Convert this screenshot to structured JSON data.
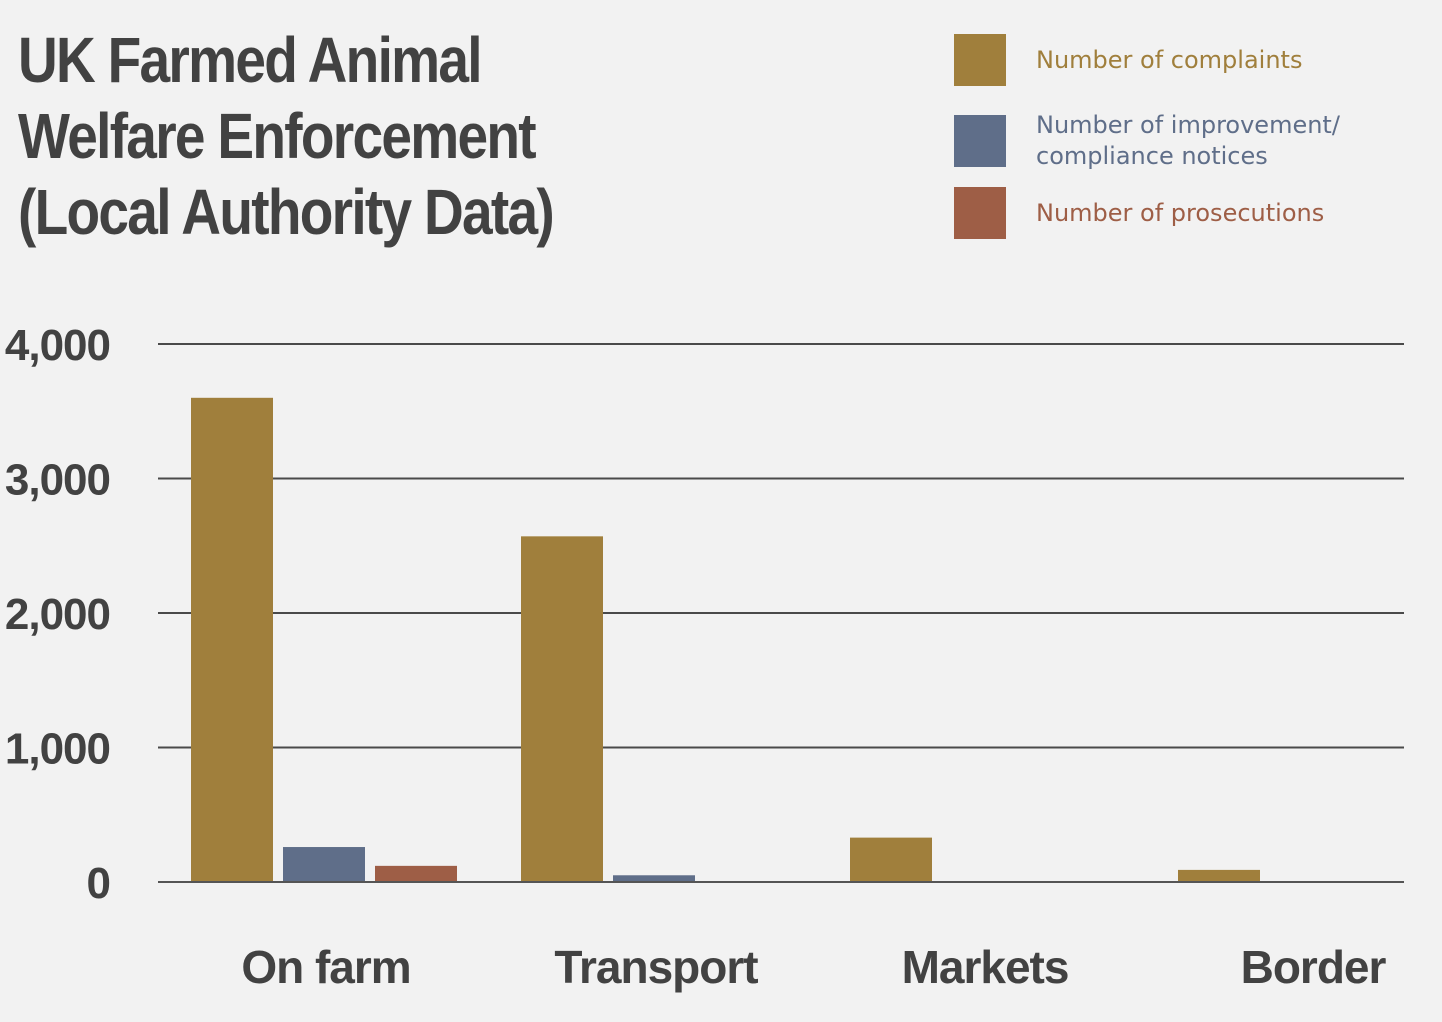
{
  "chart_data": {
    "type": "bar",
    "title": "UK Farmed Animal Welfare Enforcement (Local Authority Data)",
    "title_lines": [
      "UK Farmed Animal",
      "Welfare Enforcement",
      "(Local Authority Data)"
    ],
    "categories": [
      "On farm",
      "Transport",
      "Markets",
      "Border"
    ],
    "series": [
      {
        "name": "Number of complaints",
        "color": "#a07f3c",
        "values": [
          3600,
          2570,
          330,
          90
        ]
      },
      {
        "name": "Number of improvement/ compliance notices",
        "name_lines": [
          "Number of improvement/",
          "compliance notices"
        ],
        "color": "#5f6e89",
        "values": [
          260,
          50,
          0,
          0
        ]
      },
      {
        "name": "Number of prosecutions",
        "color": "#9e5e46",
        "values": [
          120,
          0,
          0,
          0
        ]
      }
    ],
    "ylim": [
      0,
      4000
    ],
    "yticks": [
      0,
      1000,
      2000,
      3000,
      4000
    ],
    "ytick_labels": [
      "0",
      "1,000",
      "2,000",
      "3,000",
      "4,000"
    ],
    "xlabel": "",
    "ylabel": "",
    "grid": true,
    "legend_position": "top-right"
  }
}
